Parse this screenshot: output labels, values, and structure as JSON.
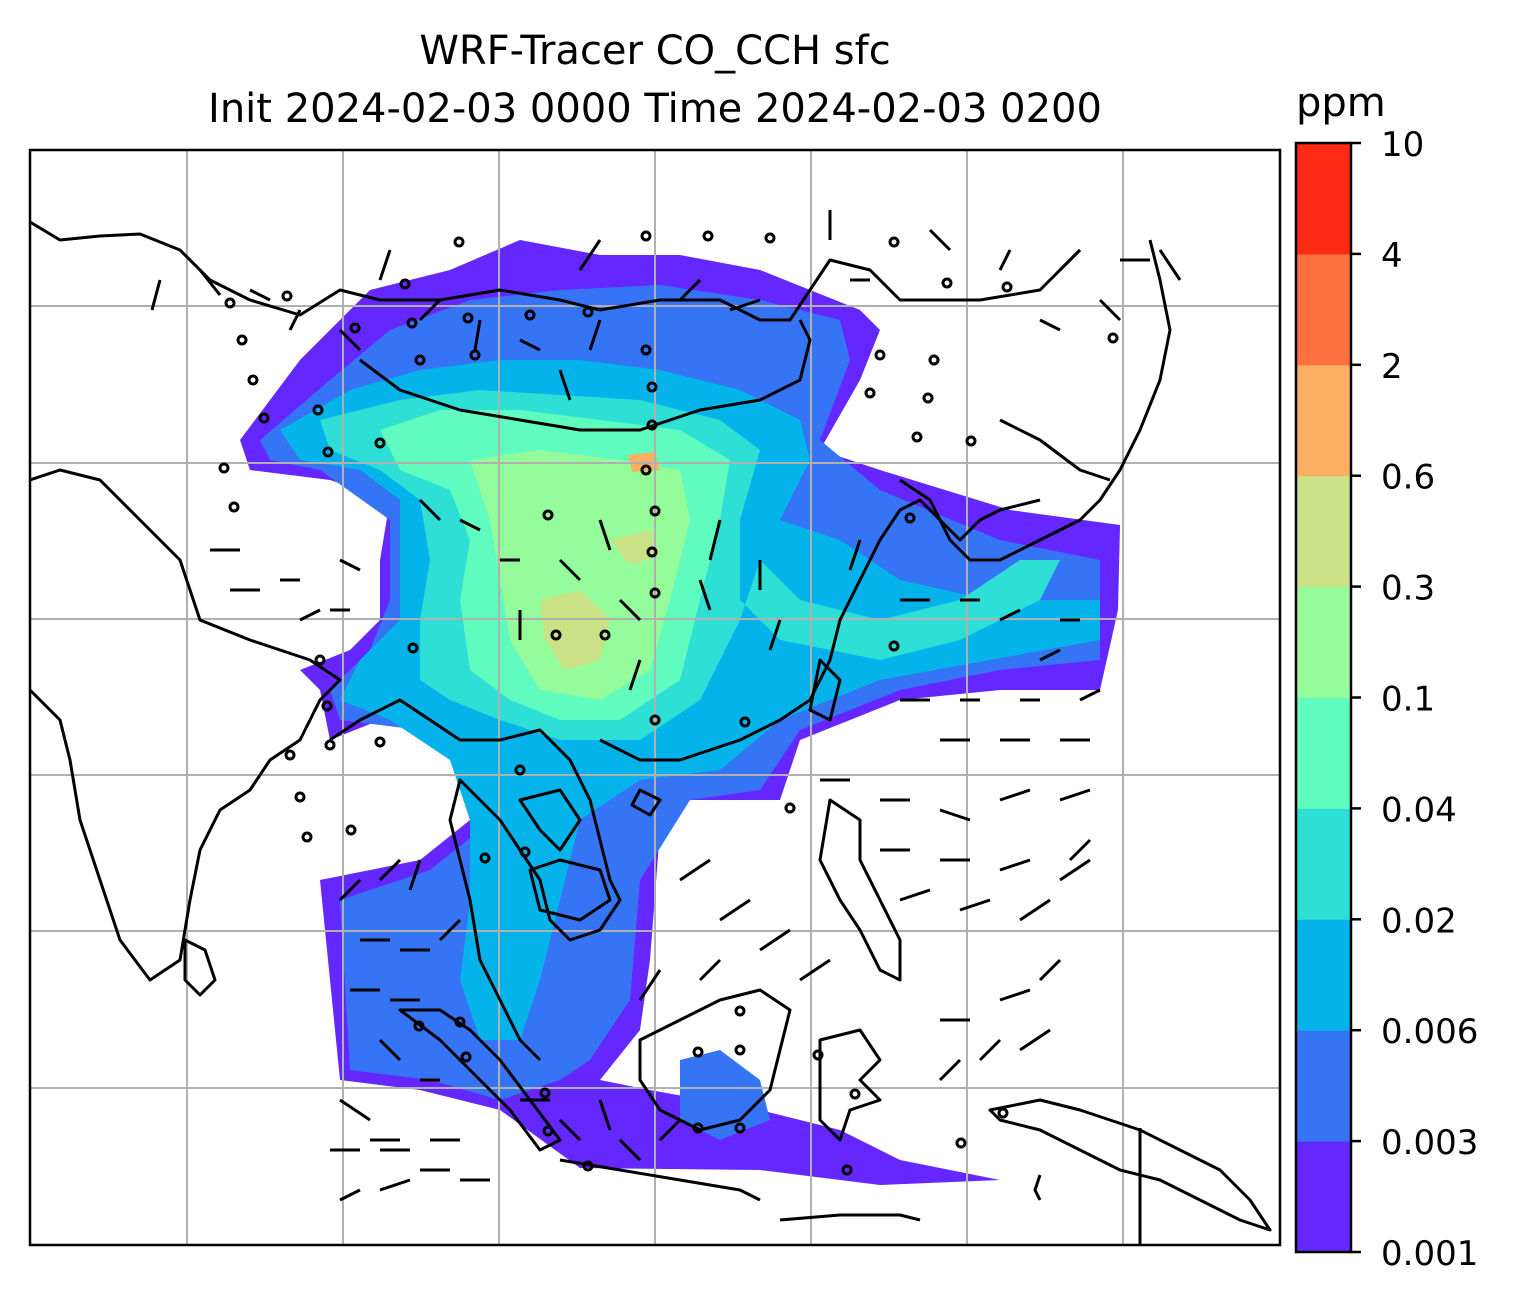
{
  "title": "WRF-Tracer CO_CCH sfc",
  "subtitle": "Init 2024-02-03 0000 Time 2024-02-03 0200",
  "colorbar": {
    "unit": "ppm",
    "ticks": [
      "0.001",
      "0.003",
      "0.006",
      "0.02",
      "0.04",
      "0.1",
      "0.3",
      "0.6",
      "2",
      "4",
      "10"
    ],
    "colors": [
      "#6427ff",
      "#3474f5",
      "#04b3ea",
      "#2ddfd5",
      "#60fbbf",
      "#94fc9b",
      "#cae186",
      "#fdb061",
      "#ff7040",
      "#ff2a16"
    ]
  }
}
